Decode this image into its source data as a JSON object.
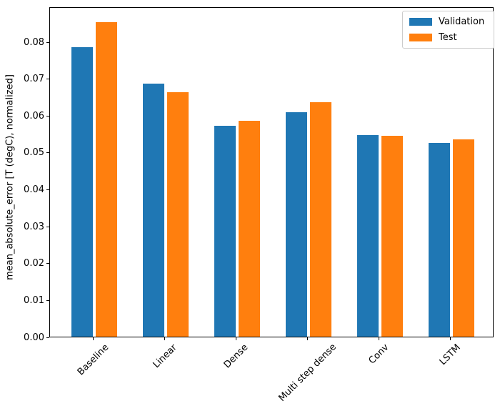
{
  "chart_data": {
    "type": "bar",
    "title": "",
    "xlabel": "",
    "ylabel": "mean_absolute_error [T (degC), normalized]",
    "categories": [
      "Baseline",
      "Linear",
      "Dense",
      "Multi step dense",
      "Conv",
      "LSTM"
    ],
    "series": [
      {
        "name": "Validation",
        "color": "#1f77b4",
        "values": [
          0.0785,
          0.0686,
          0.0572,
          0.0608,
          0.0546,
          0.0525
        ]
      },
      {
        "name": "Test",
        "color": "#ff7f0e",
        "values": [
          0.0852,
          0.0663,
          0.0585,
          0.0635,
          0.0544,
          0.0534
        ]
      }
    ],
    "ylim": [
      0,
      0.0895
    ],
    "yticks": [
      0.0,
      0.01,
      0.02,
      0.03,
      0.04,
      0.05,
      0.06,
      0.07,
      0.08
    ],
    "ytick_labels": [
      "0.00",
      "0.01",
      "0.02",
      "0.03",
      "0.04",
      "0.05",
      "0.06",
      "0.07",
      "0.08"
    ],
    "x_tick_rotation_deg": 45,
    "grid": false,
    "legend": {
      "position": "upper right",
      "entries": [
        "Validation",
        "Test"
      ],
      "border_color": "#cccccc"
    },
    "colors": {
      "background": "#ffffff",
      "spine": "#000000",
      "tick_text": "#000000"
    }
  }
}
